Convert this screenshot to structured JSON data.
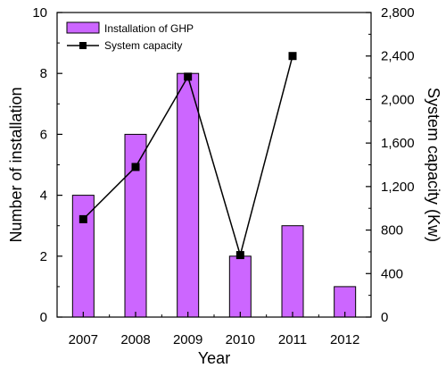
{
  "chart_data": {
    "type": "bar",
    "categories": [
      "2007",
      "2008",
      "2009",
      "2010",
      "2011",
      "2012"
    ],
    "series": [
      {
        "name": "Installation of GHP",
        "type": "bar",
        "axis": "left",
        "values": [
          4,
          6,
          8,
          2,
          3,
          1
        ]
      },
      {
        "name": "System capacity",
        "type": "line",
        "axis": "right",
        "values": [
          900,
          1380,
          2210,
          570,
          2400,
          null
        ]
      }
    ],
    "xlabel": "Year",
    "ylabel_left": "Number of installation",
    "ylabel_right": "System capacity (Kw)",
    "ylim_left": [
      0,
      10
    ],
    "ylim_right": [
      0,
      2800
    ],
    "yticks_left": [
      "0",
      "2",
      "4",
      "6",
      "8",
      "10"
    ],
    "yticks_right": [
      "0",
      "400",
      "800",
      "1,200",
      "1,600",
      "2,000",
      "2,400",
      "2,800"
    ],
    "legend_position": "top-left",
    "grid": false,
    "colors": {
      "bar_fill": "#cc66ff",
      "bar_stroke": "#000000",
      "line": "#000000",
      "marker": "#000000"
    }
  }
}
